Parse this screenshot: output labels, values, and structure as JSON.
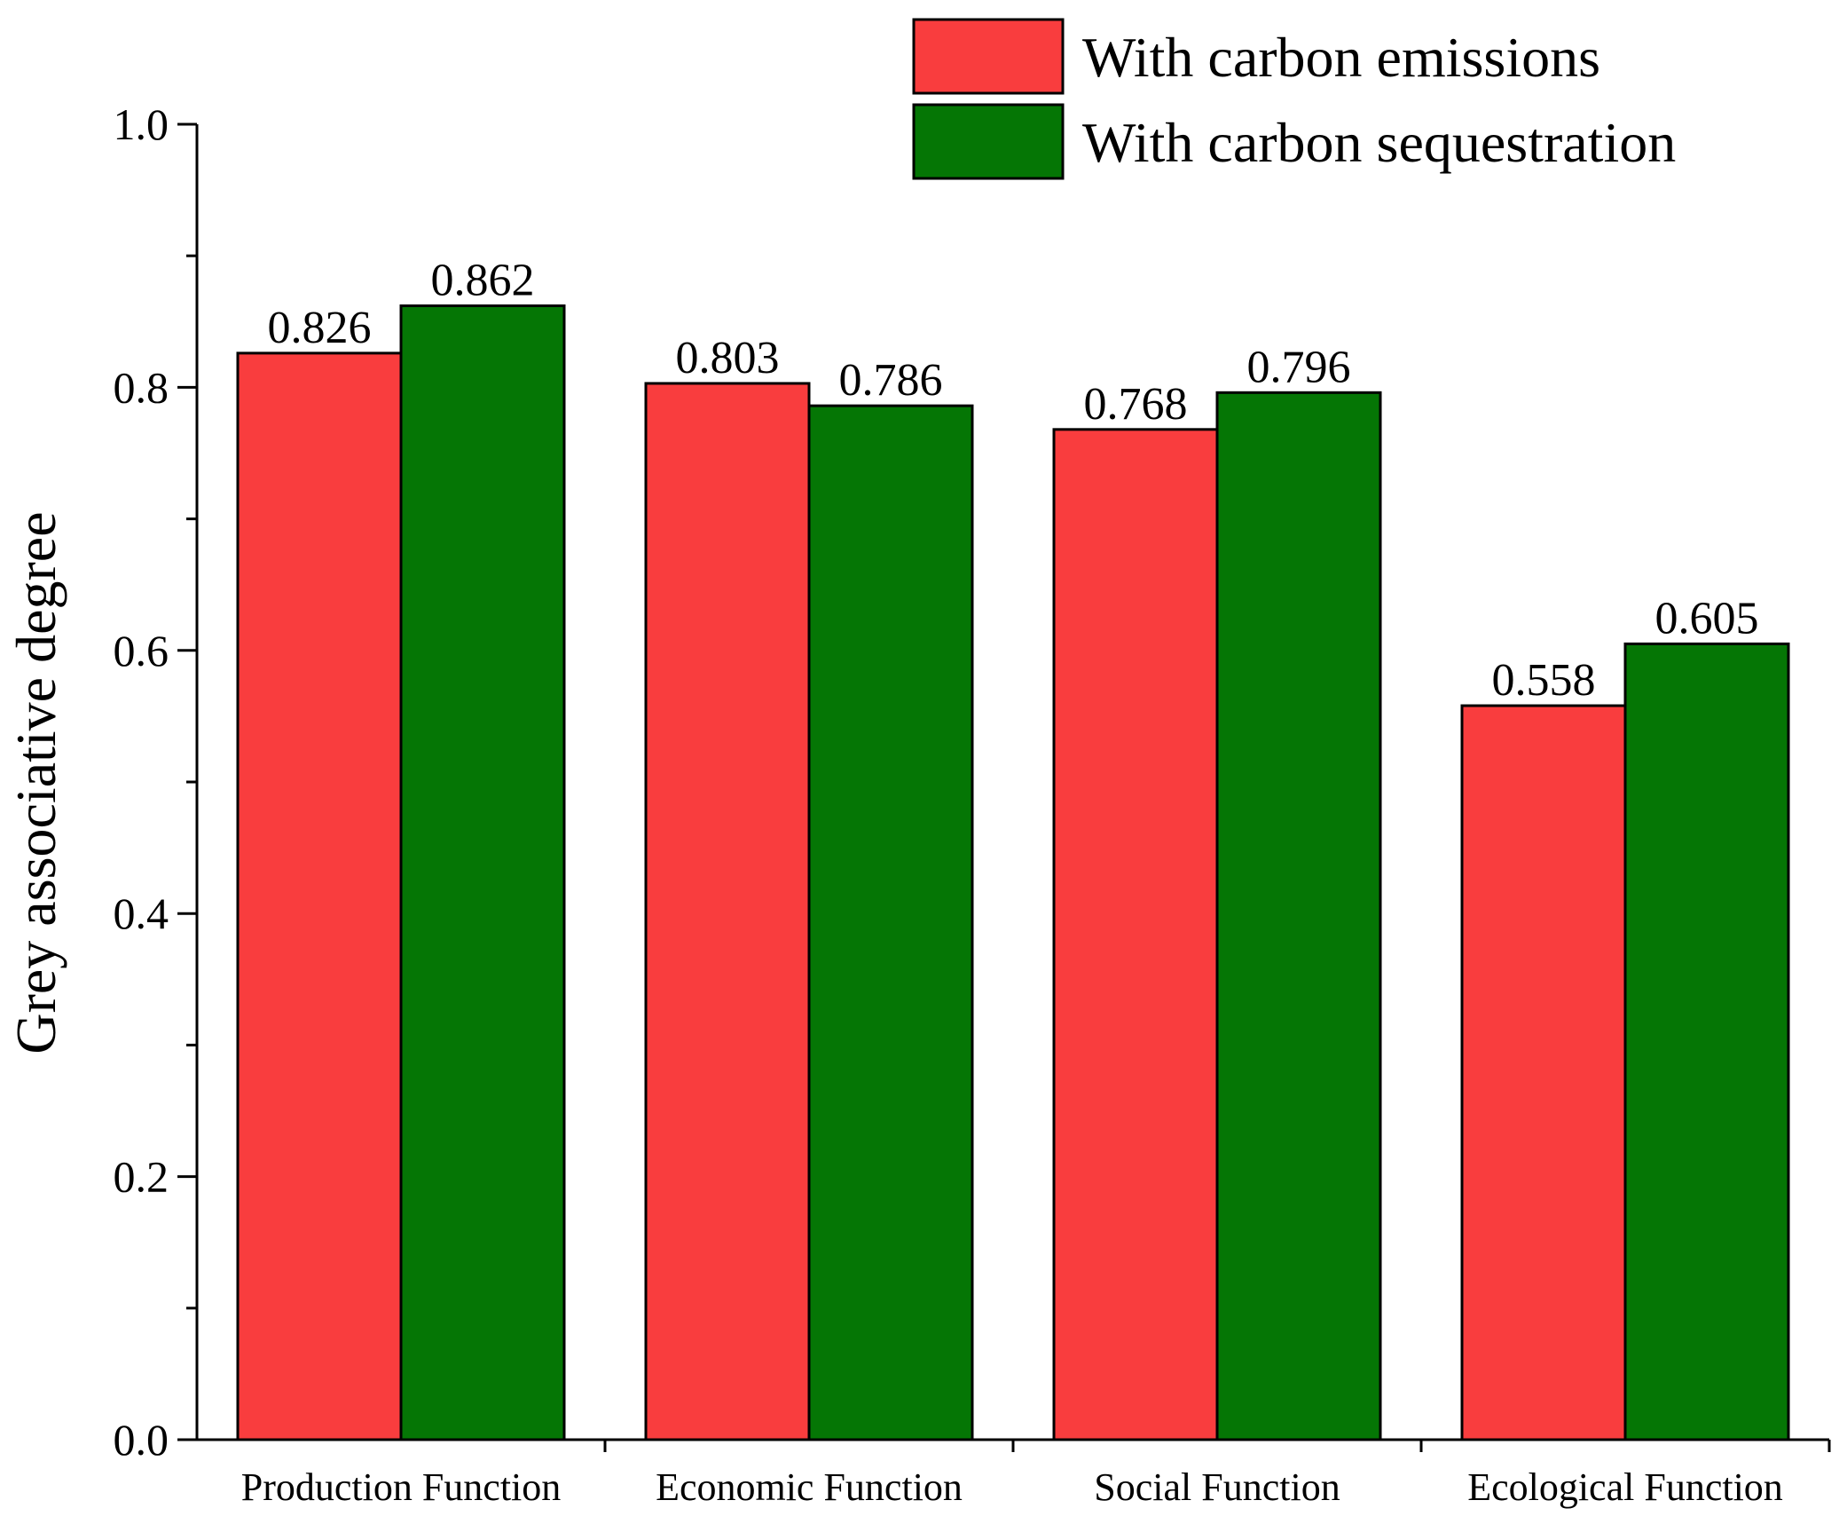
{
  "chart_data": {
    "type": "bar",
    "title": "",
    "xlabel": "",
    "ylabel": "Grey associative degree",
    "ylim": [
      0.0,
      1.0
    ],
    "y_ticks": [
      "0.0",
      "0.2",
      "0.4",
      "0.6",
      "0.8",
      "1.0"
    ],
    "grid": false,
    "legend_position": "top-right",
    "categories": [
      "Production Function",
      "Economic Function",
      "Social Function",
      "Ecological Function"
    ],
    "series": [
      {
        "name": "With carbon emissions",
        "color": "#f93d3e",
        "values": [
          0.826,
          0.803,
          0.768,
          0.558
        ],
        "labels": [
          "0.826",
          "0.803",
          "0.768",
          "0.558"
        ]
      },
      {
        "name": "With carbon sequestration",
        "color": "#057605",
        "values": [
          0.862,
          0.786,
          0.796,
          0.605
        ],
        "labels": [
          "0.862",
          "0.786",
          "0.796",
          "0.605"
        ]
      }
    ]
  }
}
